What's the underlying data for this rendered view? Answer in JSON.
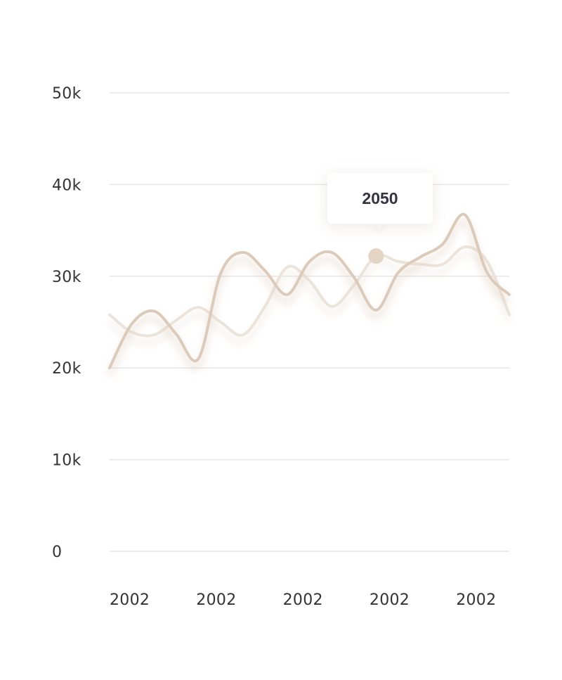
{
  "chart_data": {
    "type": "line",
    "title": "",
    "xlabel": "",
    "ylabel": "",
    "ylim": [
      0,
      50000
    ],
    "y_ticks": [
      {
        "value": 0,
        "label": "0"
      },
      {
        "value": 10000,
        "label": "10k"
      },
      {
        "value": 20000,
        "label": "20k"
      },
      {
        "value": 30000,
        "label": "30k"
      },
      {
        "value": 40000,
        "label": "40k"
      },
      {
        "value": 50000,
        "label": "50k"
      }
    ],
    "x_tick_labels": [
      "2002",
      "2002",
      "2002",
      "2002",
      "2002"
    ],
    "grid": true,
    "legend": "none",
    "x": [
      0,
      0.5,
      1,
      1.5,
      2,
      2.5,
      3,
      3.5,
      4,
      4.5,
      5,
      5.5,
      6,
      6.5,
      7,
      7.5,
      8,
      8.5,
      9
    ],
    "xlim": [
      0,
      9
    ],
    "series": [
      {
        "values": [
          25800,
          23900,
          23600,
          25200,
          26600,
          25000,
          23600,
          26700,
          31000,
          29500,
          26700,
          29000,
          32200,
          31600,
          31300,
          31300,
          33200,
          31600,
          25800
        ],
        "color": "#ece3db",
        "highlight_index": 12
      },
      {
        "values": [
          20000,
          24800,
          26200,
          23700,
          21000,
          30300,
          32600,
          30600,
          28000,
          31600,
          32600,
          29900,
          26300,
          30400,
          32100,
          33500,
          36700,
          30400,
          28000
        ],
        "color": "#dccbbb"
      }
    ],
    "tooltip": {
      "value": "2050",
      "dot_color": "#e3d4c3"
    }
  }
}
